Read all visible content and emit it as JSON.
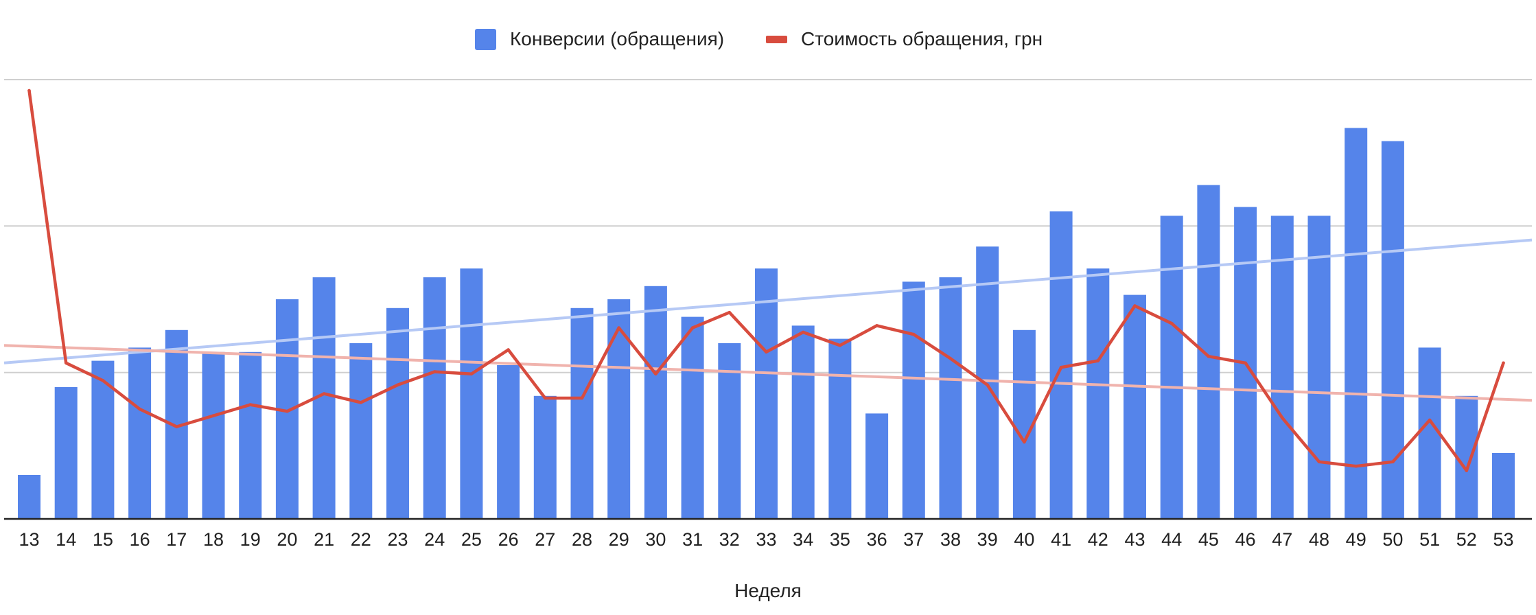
{
  "chart_data": {
    "type": "bar",
    "xlabel": "Неделя",
    "legend_position": "top",
    "grid": true,
    "categories": [
      "13",
      "14",
      "15",
      "16",
      "17",
      "18",
      "19",
      "20",
      "21",
      "22",
      "23",
      "24",
      "25",
      "26",
      "27",
      "28",
      "29",
      "30",
      "31",
      "32",
      "33",
      "34",
      "35",
      "36",
      "37",
      "38",
      "39",
      "40",
      "41",
      "42",
      "43",
      "44",
      "45",
      "46",
      "47",
      "48",
      "49",
      "50",
      "51",
      "52",
      "53"
    ],
    "y_range": [
      0,
      100
    ],
    "series": [
      {
        "name": "Конверсии (обращения)",
        "kind": "bar",
        "color": "#5584ea",
        "values": [
          10,
          30,
          36,
          39,
          43,
          38,
          38,
          50,
          55,
          40,
          48,
          55,
          57,
          35,
          28,
          48,
          50,
          53,
          46,
          40,
          57,
          44,
          41,
          24,
          54,
          55,
          62,
          43,
          70,
          57,
          51,
          69,
          76,
          71,
          69,
          69,
          89,
          86,
          39,
          28,
          15
        ]
      },
      {
        "name": "Стоимость обращения, грн",
        "kind": "line",
        "color": "#d84c3e",
        "values": [
          97.5,
          35.5,
          31.5,
          25,
          21,
          23.5,
          26,
          24.5,
          28.5,
          26.5,
          30.5,
          33.5,
          33,
          38.5,
          27.5,
          27.5,
          43.5,
          33,
          43.5,
          47,
          38,
          42.5,
          39.5,
          44,
          42,
          36.5,
          30.5,
          17.5,
          34.5,
          36,
          48.5,
          44.5,
          37,
          35.5,
          23,
          13,
          12,
          13,
          22.5,
          11,
          35.5
        ]
      }
    ],
    "trendlines": [
      {
        "series": "Конверсии (обращения)",
        "color": "#b6c9f5",
        "start": 35.5,
        "end": 63.5
      },
      {
        "series": "Стоимость обращения, грн",
        "color": "#f0b3ad",
        "start": 39.5,
        "end": 27
      }
    ]
  }
}
